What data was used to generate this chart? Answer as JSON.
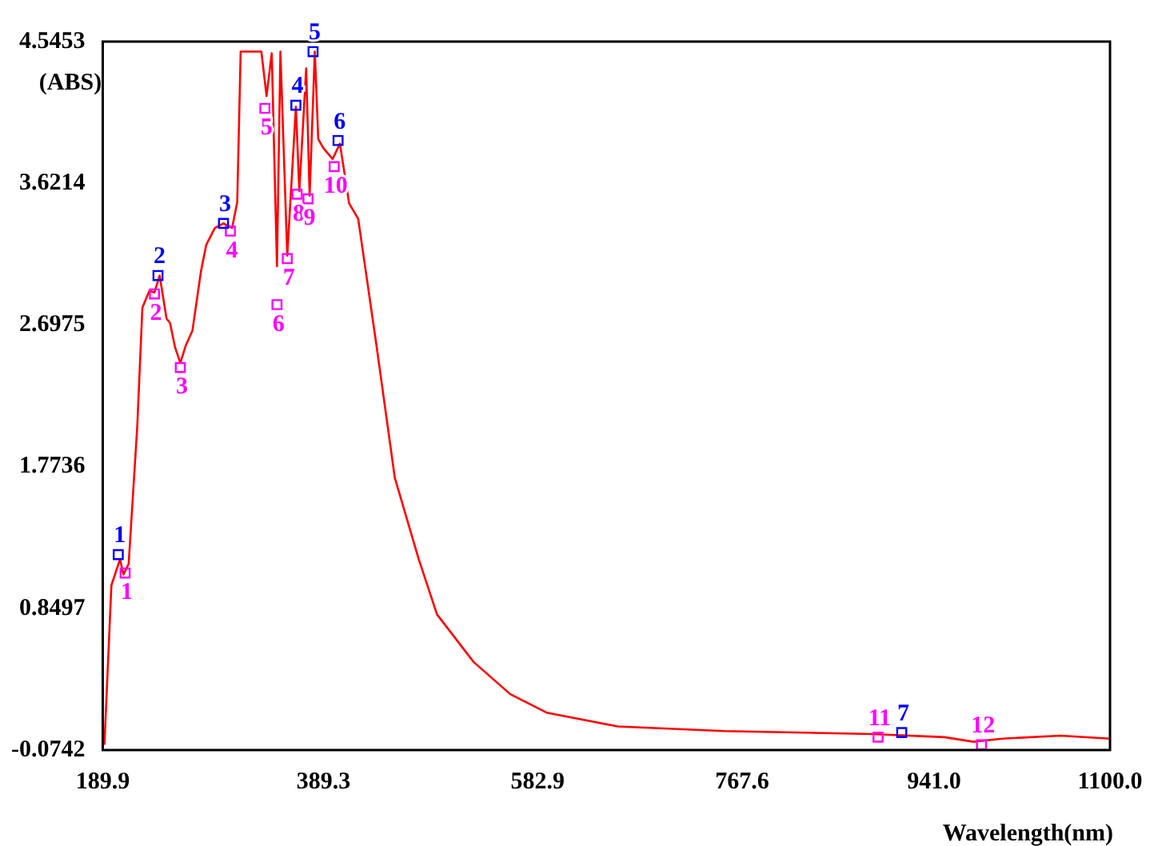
{
  "chart_data": {
    "type": "line",
    "xlabel": "Wavelength(nm)",
    "ylabel": "(ABS)",
    "xlim": [
      189.9,
      1100.0
    ],
    "xticks": [
      189.9,
      389.3,
      582.9,
      767.6,
      {
        "value": 941.0,
        "label": "941.0"
      },
      {
        "value": 1100.0,
        "label": "1100.0"
      }
    ],
    "ylim": [
      -0.0742,
      4.5453
    ],
    "yticks": [
      -0.0742,
      0.8497,
      1.7736,
      2.6975,
      3.6214,
      4.5453
    ],
    "grid": false,
    "legend": false,
    "series": [
      {
        "type": "line",
        "color": "#ff0000",
        "marker": "none",
        "x": [
          191.4,
          197.7,
          205.5,
          208.6,
          213.3,
          221.1,
          225.7,
          232.0,
          236.6,
          241.3,
          247.5,
          250.7,
          255.3,
          260.0,
          264.7,
          270.9,
          278.7,
          283.4,
          291.2,
          299.0,
          306.8,
          311.4,
          314.5,
          325.5,
          333.2,
          337.9,
          342.6,
          347.3,
          350.4,
          356.6,
          364.4,
          367.5,
          373.7,
          376.8,
          381.5,
          384.6,
          389.3,
          397.6,
          404.2,
          412.5,
          420.7,
          437.3,
          453.8,
          475.4,
          491.9,
          525.0,
          558.1,
          590.9,
          655.1,
          751.5,
          885.2,
          950.2,
          976.5,
          1002.8,
          1055.3,
          1100.0
        ],
        "values": [
          -0.04,
          1.0,
          1.17,
          1.07,
          1.14,
          2.04,
          2.81,
          2.92,
          2.91,
          3.02,
          2.74,
          2.71,
          2.55,
          2.45,
          2.56,
          2.66,
          3.05,
          3.22,
          3.33,
          3.36,
          3.33,
          3.5,
          4.48,
          4.48,
          4.48,
          4.19,
          4.47,
          3.08,
          4.48,
          3.15,
          4.12,
          3.57,
          4.37,
          3.54,
          4.48,
          3.91,
          3.85,
          3.78,
          3.88,
          3.49,
          3.39,
          2.56,
          1.7,
          1.17,
          0.81,
          0.5,
          0.29,
          0.17,
          0.08,
          0.05,
          0.03,
          0.01,
          -0.02,
          0.0,
          0.02,
          0.0
        ]
      },
      {
        "type": "scatter",
        "color": "#0000ff",
        "marker": "square",
        "x": [
          203.9,
          239.8,
          299.0,
          364.4,
          379.9,
          402.5,
          911.8
        ],
        "values": [
          1.2,
          3.02,
          3.36,
          4.13,
          4.48,
          3.9,
          0.04
        ]
      },
      {
        "type": "scatter",
        "color": "#ff00ff",
        "marker": "square",
        "x": [
          210.1,
          236.6,
          260.0,
          305.2,
          336.4,
          347.3,
          356.6,
          365.5,
          375.3,
          399.0,
          890.4,
          983.9
        ],
        "values": [
          1.08,
          2.9,
          2.42,
          3.31,
          4.11,
          2.83,
          3.13,
          3.55,
          3.52,
          3.73,
          0.01,
          -0.04
        ]
      }
    ],
    "annotations": [
      {
        "text": "1",
        "x": 203.9,
        "y": 1.2
      },
      {
        "text": "2",
        "x": 239.8,
        "y": 3.02
      },
      {
        "text": "3",
        "x": 299.0,
        "y": 3.36
      },
      {
        "text": "4",
        "x": 364.4,
        "y": 4.13
      },
      {
        "text": "5",
        "x": 379.9,
        "y": 4.48
      },
      {
        "text": "6",
        "x": 402.5,
        "y": 3.9
      },
      {
        "text": "7",
        "x": 911.8,
        "y": 0.04
      },
      {
        "text": "1",
        "x": 210.1,
        "y": 1.08
      },
      {
        "text": "2",
        "x": 236.6,
        "y": 2.9
      },
      {
        "text": "3",
        "x": 260.0,
        "y": 2.42
      },
      {
        "text": "4",
        "x": 305.2,
        "y": 3.31
      },
      {
        "text": "5",
        "x": 336.4,
        "y": 4.11
      },
      {
        "text": "6",
        "x": 347.3,
        "y": 2.83
      },
      {
        "text": "7",
        "x": 356.6,
        "y": 3.13
      },
      {
        "text": "8",
        "x": 365.5,
        "y": 3.55
      },
      {
        "text": "9",
        "x": 375.3,
        "y": 3.52
      },
      {
        "text": "10",
        "x": 399.0,
        "y": 3.73
      },
      {
        "text": "11",
        "x": 890.4,
        "y": 0.01
      },
      {
        "text": "12",
        "x": 983.9,
        "y": -0.04
      }
    ]
  }
}
